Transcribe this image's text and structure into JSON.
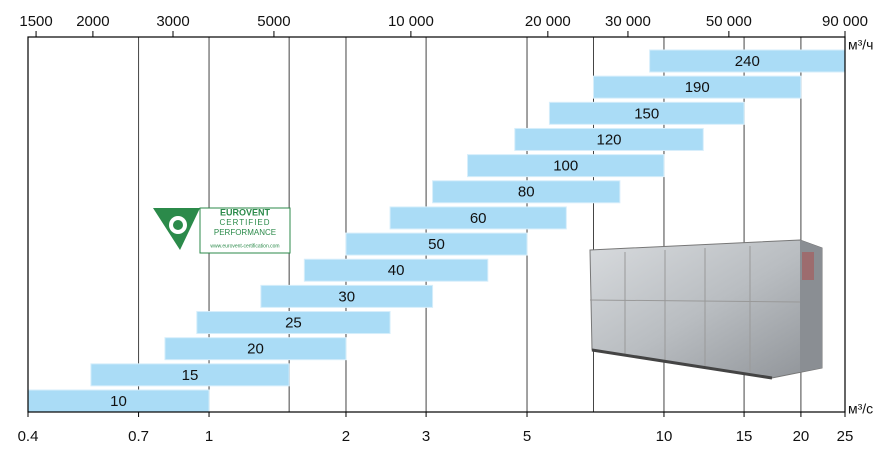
{
  "chart_data": {
    "type": "range-bar",
    "x_unit": "м³/с",
    "x2_unit": "м³/ч",
    "log_x": true,
    "categories": [
      "10",
      "15",
      "20",
      "25",
      "30",
      "40",
      "50",
      "60",
      "80",
      "100",
      "120",
      "150",
      "190",
      "240"
    ],
    "starts": [
      0.4,
      0.55,
      0.8,
      0.94,
      1.3,
      1.62,
      2.0,
      2.5,
      3.1,
      3.7,
      4.7,
      5.6,
      7,
      9.3
    ],
    "ends": [
      1.0,
      1.5,
      2.0,
      2.5,
      3.1,
      4.1,
      5,
      6.1,
      8,
      10,
      12.2,
      15,
      20,
      25
    ],
    "color": "#aadcf6",
    "xlim": [
      0.4,
      25
    ],
    "xticks": [
      0.4,
      0.7,
      1,
      2,
      3,
      5,
      10,
      15,
      20,
      25
    ],
    "xgrid": [
      0.7,
      1,
      1.5,
      2,
      3,
      5,
      7,
      10,
      15,
      20
    ],
    "x2lim": [
      1440,
      90000
    ],
    "x2ticks": [
      1500,
      2000,
      3000,
      5000,
      {
        "value": 10000,
        "label": "10 000"
      },
      {
        "value": 20000,
        "label": "20 000"
      },
      {
        "value": 30000,
        "label": "30 000"
      },
      {
        "value": 50000,
        "label": "50 000"
      },
      {
        "value": 90000,
        "label": "90 000"
      }
    ],
    "logo_texts": [
      "EUROVENT",
      "CERTIFIED",
      "PERFORMANCE",
      "www.eurovent-certification.com"
    ]
  }
}
